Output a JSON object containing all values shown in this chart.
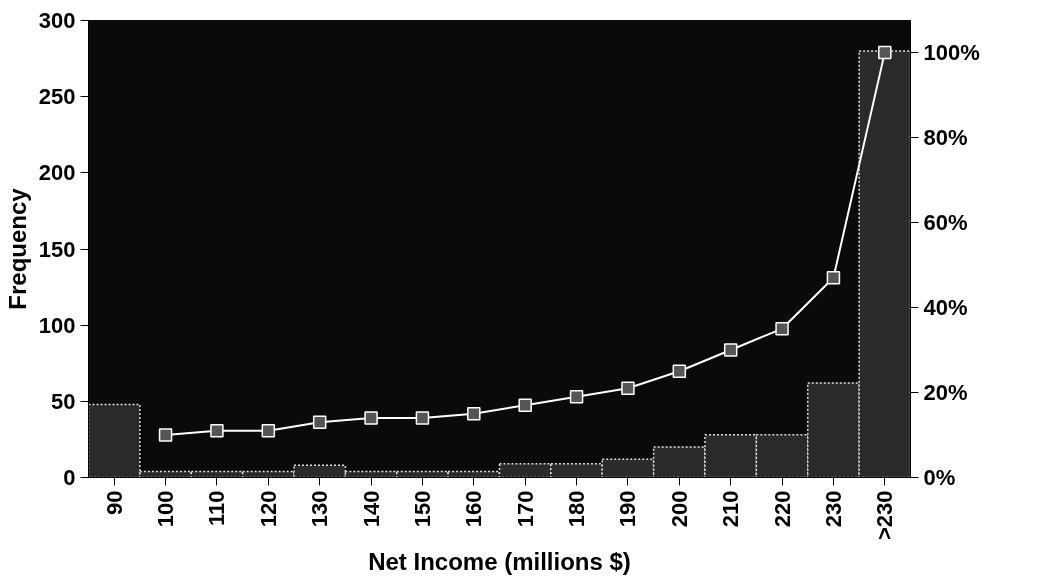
{
  "chart_data": {
    "type": "bar",
    "xlabel": "Net Income (millions $)",
    "ylabel": "Frequency",
    "categories": [
      "90",
      "100",
      "110",
      "120",
      "130",
      "140",
      "150",
      "160",
      "170",
      "180",
      "190",
      "200",
      "210",
      "220",
      "230",
      ">230"
    ],
    "series": [
      {
        "color": "#2a2a2a",
        "values": [
          48,
          4,
          4,
          4,
          8,
          4,
          4,
          4,
          9,
          9,
          12,
          20,
          28,
          28,
          62,
          280
        ]
      },
      {
        "type": "line",
        "axis": "y2",
        "color": "#ffffff",
        "marker": "square",
        "values": [
          null,
          10,
          11,
          11,
          13,
          14,
          14,
          15,
          17,
          19,
          21,
          25,
          30,
          35,
          47,
          100
        ]
      }
    ],
    "ylim": [
      0,
      300
    ],
    "yticks": [
      0,
      50,
      100,
      150,
      200,
      250,
      300
    ],
    "y2lim": [
      0,
      107.5
    ],
    "y2ticks": [
      {
        "value": 0,
        "label": "0%"
      },
      {
        "value": 20,
        "label": "20%"
      },
      {
        "value": 40,
        "label": "40%"
      },
      {
        "value": 60,
        "label": "60%"
      },
      {
        "value": 80,
        "label": "80%"
      },
      {
        "value": 100,
        "label": "100%"
      }
    ],
    "grid": false
  }
}
